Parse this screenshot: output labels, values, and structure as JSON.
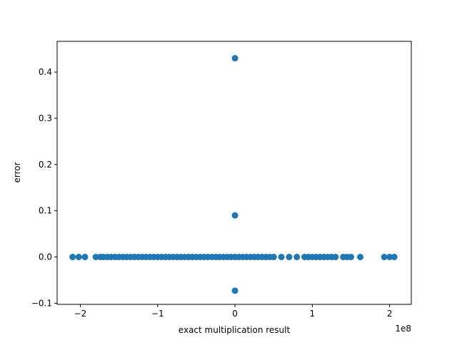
{
  "chart_data": {
    "type": "scatter",
    "title": "",
    "xlabel": "exact multiplication result",
    "ylabel": "error",
    "x_offset_label": "1e8",
    "xlim": [
      -230000000.0,
      228000000.0
    ],
    "ylim": [
      -0.1025,
      0.4665
    ],
    "xticks": [
      {
        "value": -200000000.0,
        "label": "−2"
      },
      {
        "value": -100000000.0,
        "label": "−1"
      },
      {
        "value": 0,
        "label": "0"
      },
      {
        "value": 100000000.0,
        "label": "1"
      },
      {
        "value": 200000000.0,
        "label": "2"
      }
    ],
    "yticks": [
      {
        "value": -0.1,
        "label": "−0.1"
      },
      {
        "value": 0.0,
        "label": "0.0"
      },
      {
        "value": 0.1,
        "label": "0.1"
      },
      {
        "value": 0.2,
        "label": "0.2"
      },
      {
        "value": 0.3,
        "label": "0.3"
      },
      {
        "value": 0.4,
        "label": "0.4"
      }
    ],
    "grid": false,
    "marker_color": "#1f77b4",
    "series": [
      {
        "x": [
          0,
          0,
          0,
          -210000000.0,
          -202000000.0,
          -194000000.0,
          -180000000.0,
          -174000000.0,
          -170000000.0,
          -165000000.0,
          -160000000.0,
          -155000000.0,
          -150000000.0,
          -145000000.0,
          -140000000.0,
          -135000000.0,
          -130000000.0,
          -125000000.0,
          -120000000.0,
          -115000000.0,
          -110000000.0,
          -105000000.0,
          -100000000.0,
          -95000000.0,
          -90000000.0,
          -85000000.0,
          -80000000.0,
          -75000000.0,
          -70000000.0,
          -65000000.0,
          -60000000.0,
          -55000000.0,
          -50000000.0,
          -45000000.0,
          -40000000.0,
          -35000000.0,
          -30000000.0,
          -25000000.0,
          -20000000.0,
          -15000000.0,
          -10000000.0,
          -5000000.0,
          0,
          5000000.0,
          10000000.0,
          15000000.0,
          20000000.0,
          25000000.0,
          30000000.0,
          35000000.0,
          40000000.0,
          45000000.0,
          50000000.0,
          60000000.0,
          70000000.0,
          80000000.0,
          90000000.0,
          95000000.0,
          100000000.0,
          105000000.0,
          110000000.0,
          115000000.0,
          120000000.0,
          125000000.0,
          130000000.0,
          140000000.0,
          145000000.0,
          150000000.0,
          162000000.0,
          193000000.0,
          200000000.0,
          206000000.0
        ],
        "y": [
          0.43,
          0.09,
          -0.073,
          0,
          0,
          0,
          0,
          0,
          0,
          0,
          0,
          0,
          0,
          0,
          0,
          0,
          0,
          0,
          0,
          0,
          0,
          0,
          0,
          0,
          0,
          0,
          0,
          0,
          0,
          0,
          0,
          0,
          0,
          0,
          0,
          0,
          0,
          0,
          0,
          0,
          0,
          0,
          0,
          0,
          0,
          0,
          0,
          0,
          0,
          0,
          0,
          0,
          0,
          0,
          0,
          0,
          0,
          0,
          0,
          0,
          0,
          0,
          0,
          0,
          0,
          0,
          0,
          0,
          0,
          0,
          0,
          0
        ]
      }
    ]
  }
}
